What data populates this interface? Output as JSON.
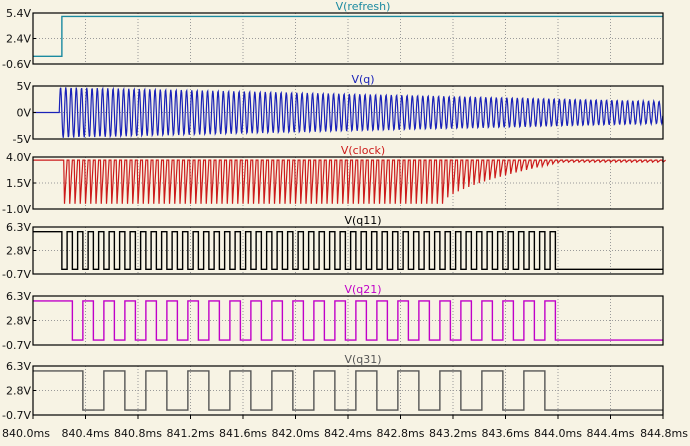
{
  "chart_data": {
    "type": "line",
    "x_unit": "ms",
    "x_range": [
      840.0,
      844.8
    ],
    "x_ticks": [
      "840.0ms",
      "840.4ms",
      "840.8ms",
      "841.2ms",
      "841.6ms",
      "842.0ms",
      "842.4ms",
      "842.8ms",
      "843.2ms",
      "843.6ms",
      "844.0ms",
      "844.4ms",
      "844.8ms"
    ],
    "grid": true,
    "panes": [
      {
        "id": "refresh",
        "title": "V(refresh)",
        "color": "#1b8aa0",
        "y_ticks": [
          "5.4V",
          "2.4V",
          "-0.6V"
        ],
        "ylim": [
          -0.6,
          5.4
        ],
        "kind": "step",
        "low": 0.3,
        "high": 5.0,
        "rise_at": 840.22
      },
      {
        "id": "q",
        "title": "V(q)",
        "color": "#1a22b8",
        "y_ticks": [
          "5V",
          "0V",
          "-5V"
        ],
        "ylim": [
          -5,
          5
        ],
        "kind": "sine",
        "start": 840.2,
        "amplitude_start": 4.8,
        "amplitude_end": 2.1,
        "period_ms": 0.04
      },
      {
        "id": "clock",
        "title": "V(clock)",
        "color": "#cc1b1b",
        "y_ticks": [
          "4.0V",
          "1.5V",
          "-1.0V"
        ],
        "ylim": [
          -1.0,
          4.0
        ],
        "kind": "clock",
        "high": 3.7,
        "low_start": -0.5,
        "low_end": 3.5,
        "start": 840.22,
        "fade_start": 843.1,
        "fade_end": 844.0,
        "period_ms": 0.04
      },
      {
        "id": "q11",
        "title": "V(q11)",
        "color": "#000000",
        "y_ticks": [
          "6.3V",
          "2.8V",
          "-0.7V"
        ],
        "ylim": [
          -0.7,
          6.3
        ],
        "kind": "square",
        "high": 5.6,
        "low": 0.0,
        "start": 840.22,
        "period_ms": 0.08,
        "stop": 844.0
      },
      {
        "id": "q21",
        "title": "V(q21)",
        "color": "#c000c8",
        "y_ticks": [
          "6.3V",
          "2.8V",
          "-0.7V"
        ],
        "ylim": [
          -0.7,
          6.3
        ],
        "kind": "square",
        "high": 5.6,
        "low": 0.0,
        "start": 840.3,
        "period_ms": 0.16,
        "stop": 844.0
      },
      {
        "id": "q31",
        "title": "V(q31)",
        "color": "#555555",
        "y_ticks": [
          "6.3V",
          "2.8V",
          "-0.7V"
        ],
        "ylim": [
          -0.7,
          6.3
        ],
        "kind": "square",
        "high": 5.6,
        "low": 0.0,
        "start": 840.38,
        "period_ms": 0.32,
        "stop": 844.0
      }
    ]
  }
}
